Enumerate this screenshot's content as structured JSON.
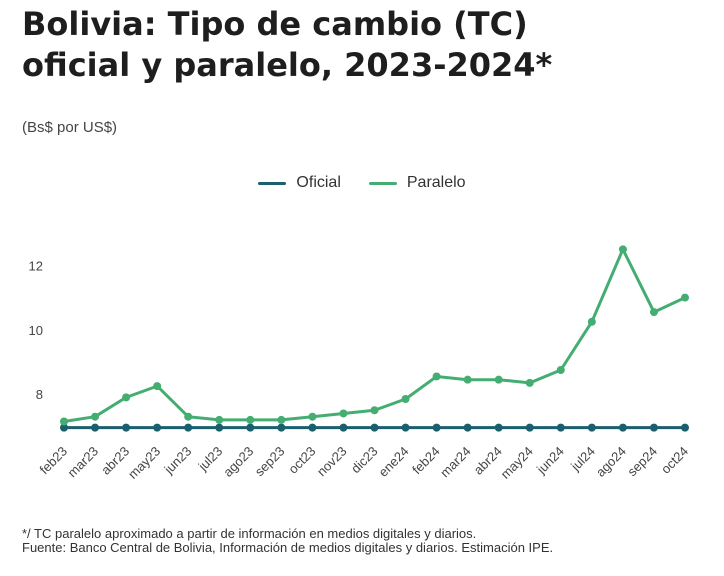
{
  "title_line1": "Bolivia: Tipo de cambio (TC)",
  "title_line2": "oficial y paralelo, 2023-2024*",
  "unit_label": "(Bs$ por US$)",
  "note1": "*/ TC paralelo aproximado a partir de información en medios digitales y diarios.",
  "note2": "Fuente: Banco Central de Bolivia, Información de medios digitales y diarios. Estimación IPE.",
  "chart_data": {
    "type": "line",
    "categories": [
      "feb23",
      "mar23",
      "abr23",
      "may23",
      "jun23",
      "jul23",
      "ago23",
      "sep23",
      "oct23",
      "nov23",
      "dic23",
      "ene24",
      "feb24",
      "mar24",
      "abr24",
      "may24",
      "jun24",
      "jul24",
      "ago24",
      "sep24",
      "oct24"
    ],
    "series": [
      {
        "name": "Oficial",
        "color": "#1a5f6e",
        "values": [
          6.96,
          6.96,
          6.96,
          6.96,
          6.96,
          6.96,
          6.96,
          6.96,
          6.96,
          6.96,
          6.96,
          6.96,
          6.96,
          6.96,
          6.96,
          6.96,
          6.96,
          6.96,
          6.96,
          6.96,
          6.96
        ]
      },
      {
        "name": "Paralelo",
        "color": "#43ad72",
        "values": [
          7.15,
          7.3,
          7.9,
          8.25,
          7.3,
          7.2,
          7.2,
          7.2,
          7.3,
          7.4,
          7.5,
          7.85,
          8.55,
          8.45,
          8.45,
          8.35,
          8.75,
          10.25,
          12.5,
          10.55,
          11.0
        ]
      }
    ],
    "yticks": [
      8,
      10,
      12
    ],
    "ylim": [
      6.7,
      13.1
    ],
    "grid": false,
    "legend_position": "top-center"
  }
}
